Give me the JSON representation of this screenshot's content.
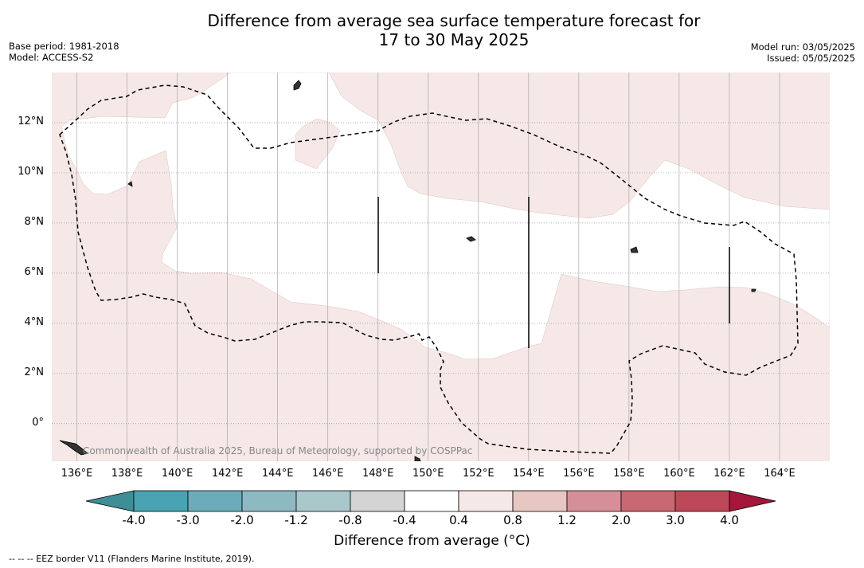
{
  "title": {
    "line1": "Difference from average sea surface temperature forecast for",
    "line2": "17 to 30 May 2025"
  },
  "meta_left": {
    "base_period": "Base period: 1981-2018",
    "model": "Model: ACCESS-S2"
  },
  "meta_right": {
    "model_run": "Model run: 03/05/2025",
    "issued": "Issued: 05/05/2025"
  },
  "map": {
    "lat_labels": [
      "12°N",
      "10°N",
      "8°N",
      "6°N",
      "4°N",
      "2°N",
      "0°"
    ],
    "lon_labels": [
      "136°E",
      "138°E",
      "140°E",
      "142°E",
      "144°E",
      "146°E",
      "148°E",
      "150°E",
      "152°E",
      "154°E",
      "156°E",
      "158°E",
      "160°E",
      "162°E",
      "164°E"
    ],
    "lon_range": [
      135,
      166
    ],
    "lat_range": [
      -1.5,
      14
    ],
    "anomaly_colors": {
      "background": "#f5e8e6",
      "neutral": "#ffffff"
    },
    "copyright": "Commonwealth of Australia 2025, Bureau of Meteorology, supported by COSPPac"
  },
  "colorbar": {
    "labels": [
      "-4.0",
      "-3.0",
      "-2.0",
      "-1.2",
      "-0.8",
      "-0.4",
      "0.4",
      "0.8",
      "1.2",
      "2.0",
      "3.0",
      "4.0"
    ],
    "colors": [
      "#3f8e96",
      "#4aa3b2",
      "#6cacba",
      "#8db9c3",
      "#a9c8cb",
      "#d4d4d4",
      "#ffffff",
      "#f5e8e6",
      "#e8c6c2",
      "#d68f96",
      "#c86871",
      "#bd4958",
      "#a3173a"
    ],
    "title": "Difference from average (°C)"
  },
  "legend_note": "--  --  -- EEZ border V11 (Flanders Marine Institute, 2019)."
}
